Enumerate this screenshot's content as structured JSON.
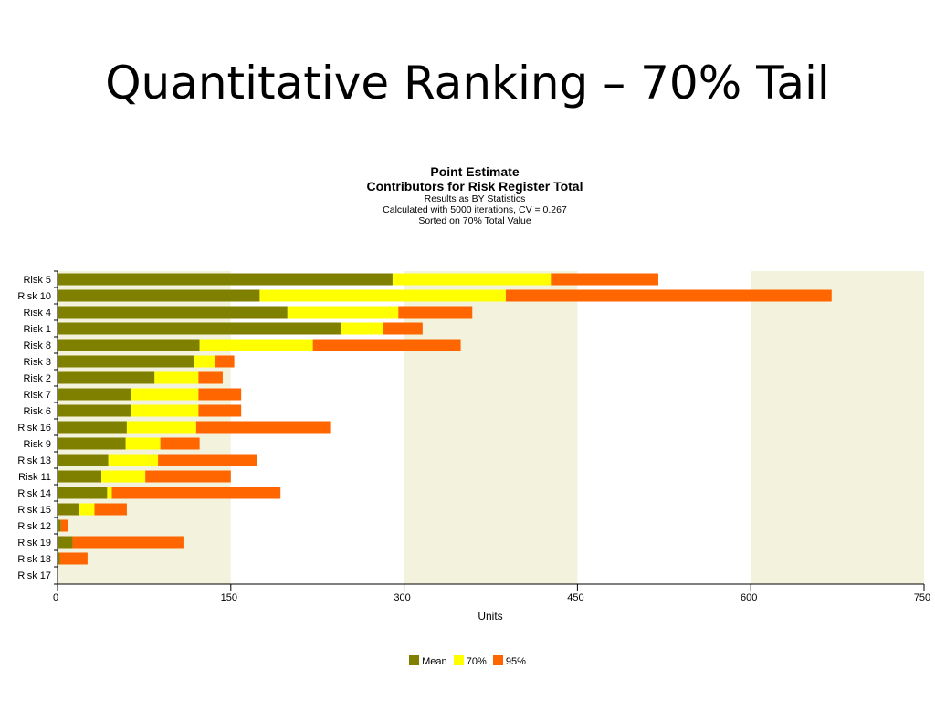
{
  "slide": {
    "title": "Quantitative Ranking – 70% Tail"
  },
  "chart_data": {
    "type": "bar",
    "orientation": "horizontal",
    "stacked": true,
    "title": "Point Estimate",
    "subtitle": "Contributors for Risk Register Total",
    "notes": [
      "Results as BY Statistics",
      "Calculated with 5000 iterations, CV = 0.267",
      "Sorted on 70% Total Value"
    ],
    "xlabel": "Units",
    "ylabel": "",
    "xlim": [
      0,
      750
    ],
    "xticks": [
      0,
      150,
      300,
      450,
      600,
      750
    ],
    "grid": "alternating vertical bands",
    "legend_position": "bottom",
    "categories": [
      "Risk 5",
      "Risk 10",
      "Risk 4",
      "Risk 1",
      "Risk 8",
      "Risk 3",
      "Risk 2",
      "Risk 7",
      "Risk 6",
      "Risk 16",
      "Risk 9",
      "Risk 13",
      "Risk 11",
      "Risk 14",
      "Risk 15",
      "Risk 12",
      "Risk 19",
      "Risk 18",
      "Risk 17"
    ],
    "series": [
      {
        "name": "Mean",
        "color": "#808000",
        "values": [
          290,
          175,
          199,
          245,
          123,
          118,
          84,
          64,
          64,
          60,
          59,
          44,
          38,
          43,
          19,
          3,
          13,
          2,
          0
        ]
      },
      {
        "name": "70%",
        "color": "#ffff00",
        "values": [
          137,
          213,
          96,
          37,
          98,
          18,
          38,
          58,
          58,
          60,
          30,
          43,
          38,
          4,
          13,
          0,
          0,
          0,
          0
        ]
      },
      {
        "name": "95%",
        "color": "#ff6600",
        "values": [
          93,
          282,
          64,
          34,
          128,
          17,
          21,
          37,
          37,
          116,
          34,
          86,
          74,
          146,
          28,
          6,
          96,
          24,
          0
        ]
      }
    ]
  }
}
